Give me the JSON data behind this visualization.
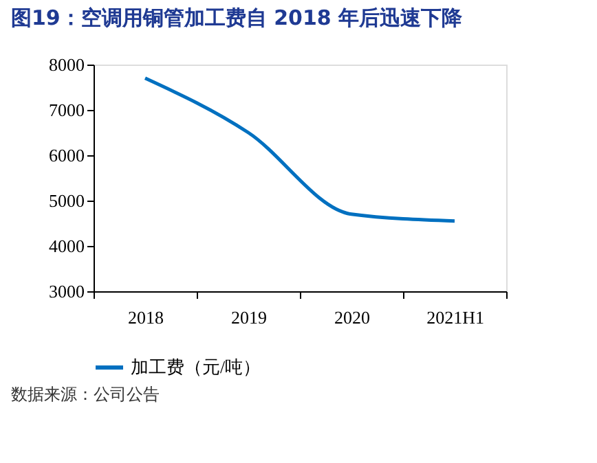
{
  "chart_data": {
    "type": "line",
    "title": "图19：空调用铜管加工费自 2018 年后迅速下降",
    "categories": [
      "2018",
      "2019",
      "2020",
      "2021H1"
    ],
    "series": [
      {
        "name": "加工费（元/吨）",
        "color": "#0070c0",
        "values": [
          7700,
          6500,
          4700,
          4550
        ]
      }
    ],
    "ylim": [
      3000,
      8000
    ],
    "yticks": [
      3000,
      4000,
      5000,
      6000,
      7000,
      8000
    ],
    "grid": false,
    "legend": "bottom",
    "marker": "none",
    "line_style": "solid",
    "annotations": [
      "数据来源：公司公告"
    ]
  }
}
